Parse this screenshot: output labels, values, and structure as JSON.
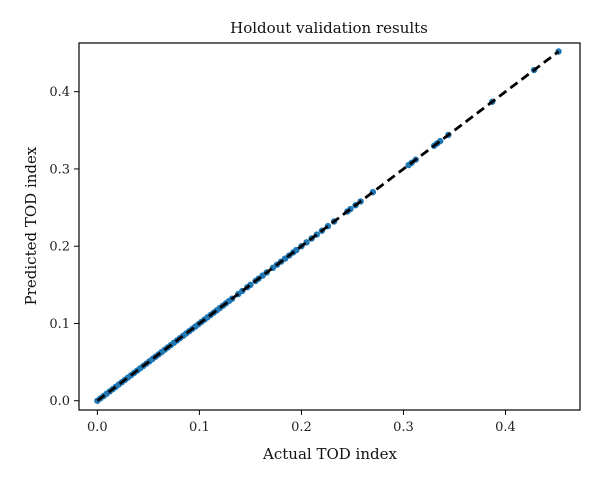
{
  "chart_data": {
    "type": "scatter",
    "title": "Holdout validation results",
    "xlabel": "Actual TOD index",
    "ylabel": "Predicted TOD index",
    "xlim": [
      -0.018,
      0.473
    ],
    "ylim": [
      -0.012,
      0.463
    ],
    "xticks": [
      0.0,
      0.1,
      0.2,
      0.3,
      0.4
    ],
    "yticks": [
      0.0,
      0.1,
      0.2,
      0.3,
      0.4
    ],
    "xtick_labels": [
      "0.0",
      "0.1",
      "0.2",
      "0.3",
      "0.4"
    ],
    "ytick_labels": [
      "0.0",
      "0.1",
      "0.2",
      "0.3",
      "0.4"
    ],
    "grid": false,
    "point_color": "#1f77b4",
    "line_color": "#000000",
    "reference_line": {
      "style": "dashed",
      "x": [
        0.0,
        0.452
      ],
      "y": [
        0.0,
        0.452
      ]
    },
    "points": [
      [
        0.0,
        0.0
      ],
      [
        0.003,
        0.003
      ],
      [
        0.006,
        0.006
      ],
      [
        0.009,
        0.009
      ],
      [
        0.012,
        0.012
      ],
      [
        0.015,
        0.015
      ],
      [
        0.018,
        0.018
      ],
      [
        0.021,
        0.021
      ],
      [
        0.024,
        0.024
      ],
      [
        0.027,
        0.027
      ],
      [
        0.03,
        0.03
      ],
      [
        0.033,
        0.033
      ],
      [
        0.036,
        0.036
      ],
      [
        0.039,
        0.039
      ],
      [
        0.042,
        0.042
      ],
      [
        0.045,
        0.045
      ],
      [
        0.048,
        0.048
      ],
      [
        0.051,
        0.051
      ],
      [
        0.054,
        0.054
      ],
      [
        0.057,
        0.057
      ],
      [
        0.06,
        0.06
      ],
      [
        0.063,
        0.063
      ],
      [
        0.066,
        0.066
      ],
      [
        0.069,
        0.069
      ],
      [
        0.072,
        0.072
      ],
      [
        0.075,
        0.075
      ],
      [
        0.078,
        0.078
      ],
      [
        0.081,
        0.081
      ],
      [
        0.084,
        0.084
      ],
      [
        0.087,
        0.087
      ],
      [
        0.09,
        0.09
      ],
      [
        0.093,
        0.093
      ],
      [
        0.096,
        0.096
      ],
      [
        0.099,
        0.099
      ],
      [
        0.102,
        0.102
      ],
      [
        0.105,
        0.105
      ],
      [
        0.108,
        0.108
      ],
      [
        0.111,
        0.111
      ],
      [
        0.114,
        0.114
      ],
      [
        0.117,
        0.117
      ],
      [
        0.12,
        0.12
      ],
      [
        0.123,
        0.123
      ],
      [
        0.126,
        0.126
      ],
      [
        0.129,
        0.129
      ],
      [
        0.132,
        0.132
      ],
      [
        0.138,
        0.138
      ],
      [
        0.142,
        0.142
      ],
      [
        0.147,
        0.147
      ],
      [
        0.15,
        0.15
      ],
      [
        0.155,
        0.155
      ],
      [
        0.158,
        0.158
      ],
      [
        0.162,
        0.162
      ],
      [
        0.166,
        0.166
      ],
      [
        0.172,
        0.172
      ],
      [
        0.176,
        0.176
      ],
      [
        0.18,
        0.18
      ],
      [
        0.184,
        0.184
      ],
      [
        0.188,
        0.188
      ],
      [
        0.192,
        0.192
      ],
      [
        0.195,
        0.195
      ],
      [
        0.2,
        0.2
      ],
      [
        0.205,
        0.205
      ],
      [
        0.21,
        0.21
      ],
      [
        0.215,
        0.215
      ],
      [
        0.22,
        0.22
      ],
      [
        0.226,
        0.226
      ],
      [
        0.232,
        0.232
      ],
      [
        0.245,
        0.245
      ],
      [
        0.248,
        0.248
      ],
      [
        0.253,
        0.253
      ],
      [
        0.258,
        0.258
      ],
      [
        0.27,
        0.27
      ],
      [
        0.305,
        0.305
      ],
      [
        0.308,
        0.308
      ],
      [
        0.312,
        0.312
      ],
      [
        0.33,
        0.33
      ],
      [
        0.333,
        0.333
      ],
      [
        0.336,
        0.336
      ],
      [
        0.344,
        0.344
      ],
      [
        0.387,
        0.387
      ],
      [
        0.428,
        0.428
      ],
      [
        0.452,
        0.452
      ]
    ]
  }
}
